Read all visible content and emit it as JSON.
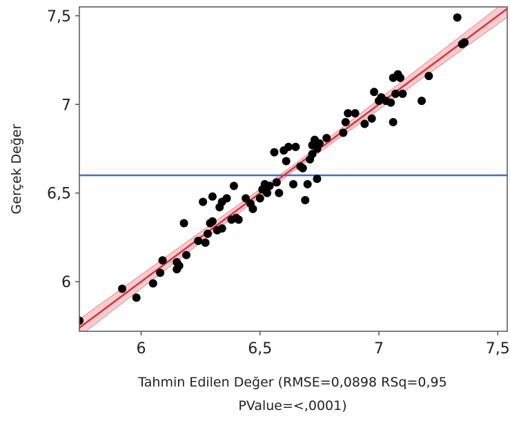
{
  "chart_data": {
    "type": "scatter",
    "xlabel_line1": "Tahmin Edilen Değer (RMSE=0,0898 RSq=0,95",
    "xlabel_line2": "PValue=<,0001)",
    "ylabel": "Gerçek Değer",
    "xlim": [
      5.74,
      7.54
    ],
    "ylim": [
      5.72,
      7.55
    ],
    "xticks": [
      {
        "v": 6,
        "label": "6"
      },
      {
        "v": 6.5,
        "label": "6,5"
      },
      {
        "v": 7,
        "label": "7"
      },
      {
        "v": 7.5,
        "label": "7,5"
      }
    ],
    "yticks": [
      {
        "v": 6,
        "label": "6"
      },
      {
        "v": 6.5,
        "label": "6,5"
      },
      {
        "v": 7,
        "label": "7"
      },
      {
        "v": 7.5,
        "label": "7,5"
      }
    ],
    "mean_line_y": 6.6,
    "fit_line": {
      "x": [
        5.74,
        7.54
      ],
      "y": [
        5.74,
        7.54
      ]
    },
    "confidence_band_halfwidth": 0.03,
    "colors": {
      "points": "#000000",
      "fit_line": "#e0303a",
      "band": "#f4b6bb",
      "mean_line": "#3f6fd0",
      "frame": "#555555"
    },
    "points": [
      {
        "x": 5.74,
        "y": 5.78
      },
      {
        "x": 5.92,
        "y": 5.96
      },
      {
        "x": 5.98,
        "y": 5.91
      },
      {
        "x": 6.05,
        "y": 5.99
      },
      {
        "x": 6.08,
        "y": 6.05
      },
      {
        "x": 6.09,
        "y": 6.12
      },
      {
        "x": 6.15,
        "y": 6.11
      },
      {
        "x": 6.15,
        "y": 6.07
      },
      {
        "x": 6.16,
        "y": 6.09
      },
      {
        "x": 6.19,
        "y": 6.15
      },
      {
        "x": 6.18,
        "y": 6.33
      },
      {
        "x": 6.24,
        "y": 6.23
      },
      {
        "x": 6.27,
        "y": 6.22
      },
      {
        "x": 6.26,
        "y": 6.45
      },
      {
        "x": 6.28,
        "y": 6.27
      },
      {
        "x": 6.29,
        "y": 6.33
      },
      {
        "x": 6.3,
        "y": 6.34
      },
      {
        "x": 6.3,
        "y": 6.48
      },
      {
        "x": 6.32,
        "y": 6.29
      },
      {
        "x": 6.33,
        "y": 6.42
      },
      {
        "x": 6.34,
        "y": 6.3
      },
      {
        "x": 6.34,
        "y": 6.45
      },
      {
        "x": 6.36,
        "y": 6.47
      },
      {
        "x": 6.38,
        "y": 6.35
      },
      {
        "x": 6.39,
        "y": 6.54
      },
      {
        "x": 6.4,
        "y": 6.36
      },
      {
        "x": 6.41,
        "y": 6.35
      },
      {
        "x": 6.44,
        "y": 6.47
      },
      {
        "x": 6.46,
        "y": 6.44
      },
      {
        "x": 6.47,
        "y": 6.41
      },
      {
        "x": 6.5,
        "y": 6.47
      },
      {
        "x": 6.51,
        "y": 6.52
      },
      {
        "x": 6.52,
        "y": 6.55
      },
      {
        "x": 6.53,
        "y": 6.5
      },
      {
        "x": 6.54,
        "y": 6.54
      },
      {
        "x": 6.56,
        "y": 6.73
      },
      {
        "x": 6.57,
        "y": 6.56
      },
      {
        "x": 6.58,
        "y": 6.5
      },
      {
        "x": 6.6,
        "y": 6.74
      },
      {
        "x": 6.61,
        "y": 6.68
      },
      {
        "x": 6.62,
        "y": 6.76
      },
      {
        "x": 6.64,
        "y": 6.55
      },
      {
        "x": 6.65,
        "y": 6.76
      },
      {
        "x": 6.67,
        "y": 6.65
      },
      {
        "x": 6.68,
        "y": 6.64
      },
      {
        "x": 6.69,
        "y": 6.46
      },
      {
        "x": 6.7,
        "y": 6.55
      },
      {
        "x": 6.71,
        "y": 6.69
      },
      {
        "x": 6.72,
        "y": 6.77
      },
      {
        "x": 6.72,
        "y": 6.72
      },
      {
        "x": 6.73,
        "y": 6.8
      },
      {
        "x": 6.74,
        "y": 6.58
      },
      {
        "x": 6.74,
        "y": 6.75
      },
      {
        "x": 6.75,
        "y": 6.78
      },
      {
        "x": 6.78,
        "y": 6.81
      },
      {
        "x": 6.85,
        "y": 6.84
      },
      {
        "x": 6.86,
        "y": 6.9
      },
      {
        "x": 6.87,
        "y": 6.95
      },
      {
        "x": 6.9,
        "y": 6.95
      },
      {
        "x": 6.94,
        "y": 6.89
      },
      {
        "x": 6.97,
        "y": 6.92
      },
      {
        "x": 6.98,
        "y": 7.07
      },
      {
        "x": 7.0,
        "y": 7.02
      },
      {
        "x": 7.01,
        "y": 7.04
      },
      {
        "x": 7.03,
        "y": 7.02
      },
      {
        "x": 7.05,
        "y": 7.01
      },
      {
        "x": 7.06,
        "y": 6.9
      },
      {
        "x": 7.06,
        "y": 7.15
      },
      {
        "x": 7.07,
        "y": 7.06
      },
      {
        "x": 7.08,
        "y": 7.17
      },
      {
        "x": 7.09,
        "y": 7.15
      },
      {
        "x": 7.1,
        "y": 7.06
      },
      {
        "x": 7.18,
        "y": 7.02
      },
      {
        "x": 7.21,
        "y": 7.16
      },
      {
        "x": 7.33,
        "y": 7.49
      },
      {
        "x": 7.35,
        "y": 7.34
      },
      {
        "x": 7.36,
        "y": 7.35
      }
    ]
  }
}
